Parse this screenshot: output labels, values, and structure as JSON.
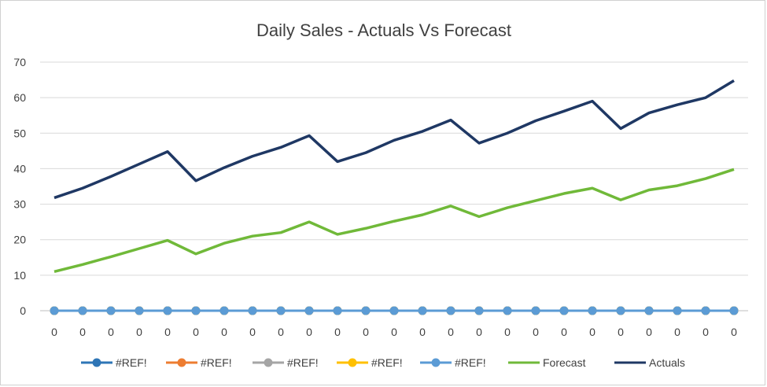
{
  "chart_data": {
    "type": "line",
    "title": "Daily Sales - Actuals Vs Forecast",
    "xlabel": "",
    "ylabel": "",
    "ylim": [
      0,
      70
    ],
    "yticks": [
      0,
      10,
      20,
      30,
      40,
      50,
      60,
      70
    ],
    "grid": true,
    "legend_position": "bottom",
    "categories": [
      "0",
      "0",
      "0",
      "0",
      "0",
      "0",
      "0",
      "0",
      "0",
      "0",
      "0",
      "0",
      "0",
      "0",
      "0",
      "0",
      "0",
      "0",
      "0",
      "0",
      "0",
      "0",
      "0",
      "0",
      "0"
    ],
    "series": [
      {
        "name": "#REF!",
        "color": "#2e75b6",
        "marker": true,
        "values": [
          0,
          0,
          0,
          0,
          0,
          0,
          0,
          0,
          0,
          0,
          0,
          0,
          0,
          0,
          0,
          0,
          0,
          0,
          0,
          0,
          0,
          0,
          0,
          0,
          0
        ]
      },
      {
        "name": "#REF!",
        "color": "#ed7d31",
        "marker": true,
        "values": [
          0,
          0,
          0,
          0,
          0,
          0,
          0,
          0,
          0,
          0,
          0,
          0,
          0,
          0,
          0,
          0,
          0,
          0,
          0,
          0,
          0,
          0,
          0,
          0,
          0
        ]
      },
      {
        "name": "#REF!",
        "color": "#a5a5a5",
        "marker": true,
        "values": [
          0,
          0,
          0,
          0,
          0,
          0,
          0,
          0,
          0,
          0,
          0,
          0,
          0,
          0,
          0,
          0,
          0,
          0,
          0,
          0,
          0,
          0,
          0,
          0,
          0
        ]
      },
      {
        "name": "#REF!",
        "color": "#ffc000",
        "marker": true,
        "values": [
          0,
          0,
          0,
          0,
          0,
          0,
          0,
          0,
          0,
          0,
          0,
          0,
          0,
          0,
          0,
          0,
          0,
          0,
          0,
          0,
          0,
          0,
          0,
          0,
          0
        ]
      },
      {
        "name": "#REF!",
        "color": "#5b9bd5",
        "marker": true,
        "values": [
          0,
          0,
          0,
          0,
          0,
          0,
          0,
          0,
          0,
          0,
          0,
          0,
          0,
          0,
          0,
          0,
          0,
          0,
          0,
          0,
          0,
          0,
          0,
          0,
          0
        ]
      },
      {
        "name": "Forecast",
        "color": "#70b939",
        "marker": false,
        "values": [
          11,
          13,
          15.2,
          17.5,
          19.8,
          16,
          19,
          21,
          22,
          25,
          21.5,
          23.2,
          25.2,
          27,
          29.5,
          26.5,
          29,
          31,
          33,
          34.5,
          31.2,
          34,
          35.2,
          37.2,
          39.8
        ]
      },
      {
        "name": "Actuals",
        "color": "#1f3864",
        "marker": false,
        "values": [
          31.8,
          34.5,
          37.8,
          41.3,
          44.8,
          36.6,
          40.3,
          43.5,
          46,
          49.3,
          42,
          44.5,
          48,
          50.5,
          53.7,
          47.2,
          50,
          53.5,
          56.2,
          59,
          51.3,
          55.7,
          58,
          60,
          64.8
        ]
      }
    ]
  }
}
